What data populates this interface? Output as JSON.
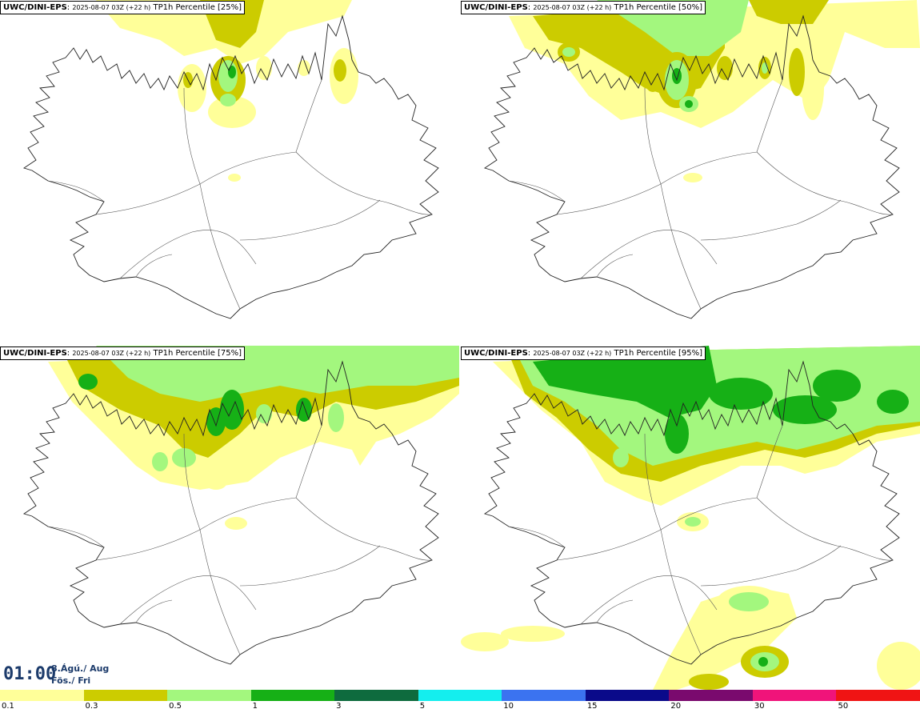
{
  "panels": [
    {
      "model": "UWC/DINI-EPS",
      "run": "2025-08-07 03Z (+22 h)",
      "param": "TP1h Percentile [25%]"
    },
    {
      "model": "UWC/DINI-EPS",
      "run": "2025-08-07 03Z (+22 h)",
      "param": "TP1h Percentile [50%]"
    },
    {
      "model": "UWC/DINI-EPS",
      "run": "2025-08-07 03Z (+22 h)",
      "param": "TP1h Percentile [75%]"
    },
    {
      "model": "UWC/DINI-EPS",
      "run": "2025-08-07 03Z (+22 h)",
      "param": "TP1h Percentile [95%]"
    }
  ],
  "time": {
    "clock": "01:00",
    "date": "8.Ágú./ Aug",
    "day": "Fös./ Fri"
  },
  "legend": {
    "levels": [
      {
        "label": "0.1",
        "color": "#ffff99"
      },
      {
        "label": "0.3",
        "color": "#cccc00"
      },
      {
        "label": "0.5",
        "color": "#a3f77e"
      },
      {
        "label": "1",
        "color": "#16b016"
      },
      {
        "label": "3",
        "color": "#0e6b3e"
      },
      {
        "label": "5",
        "color": "#14eeee"
      },
      {
        "label": "10",
        "color": "#3b73f0"
      },
      {
        "label": "15",
        "color": "#0a0a8a"
      },
      {
        "label": "20",
        "color": "#7a0a6e"
      },
      {
        "label": "30",
        "color": "#f0147a"
      },
      {
        "label": "50",
        "color": "#f01414"
      }
    ]
  }
}
